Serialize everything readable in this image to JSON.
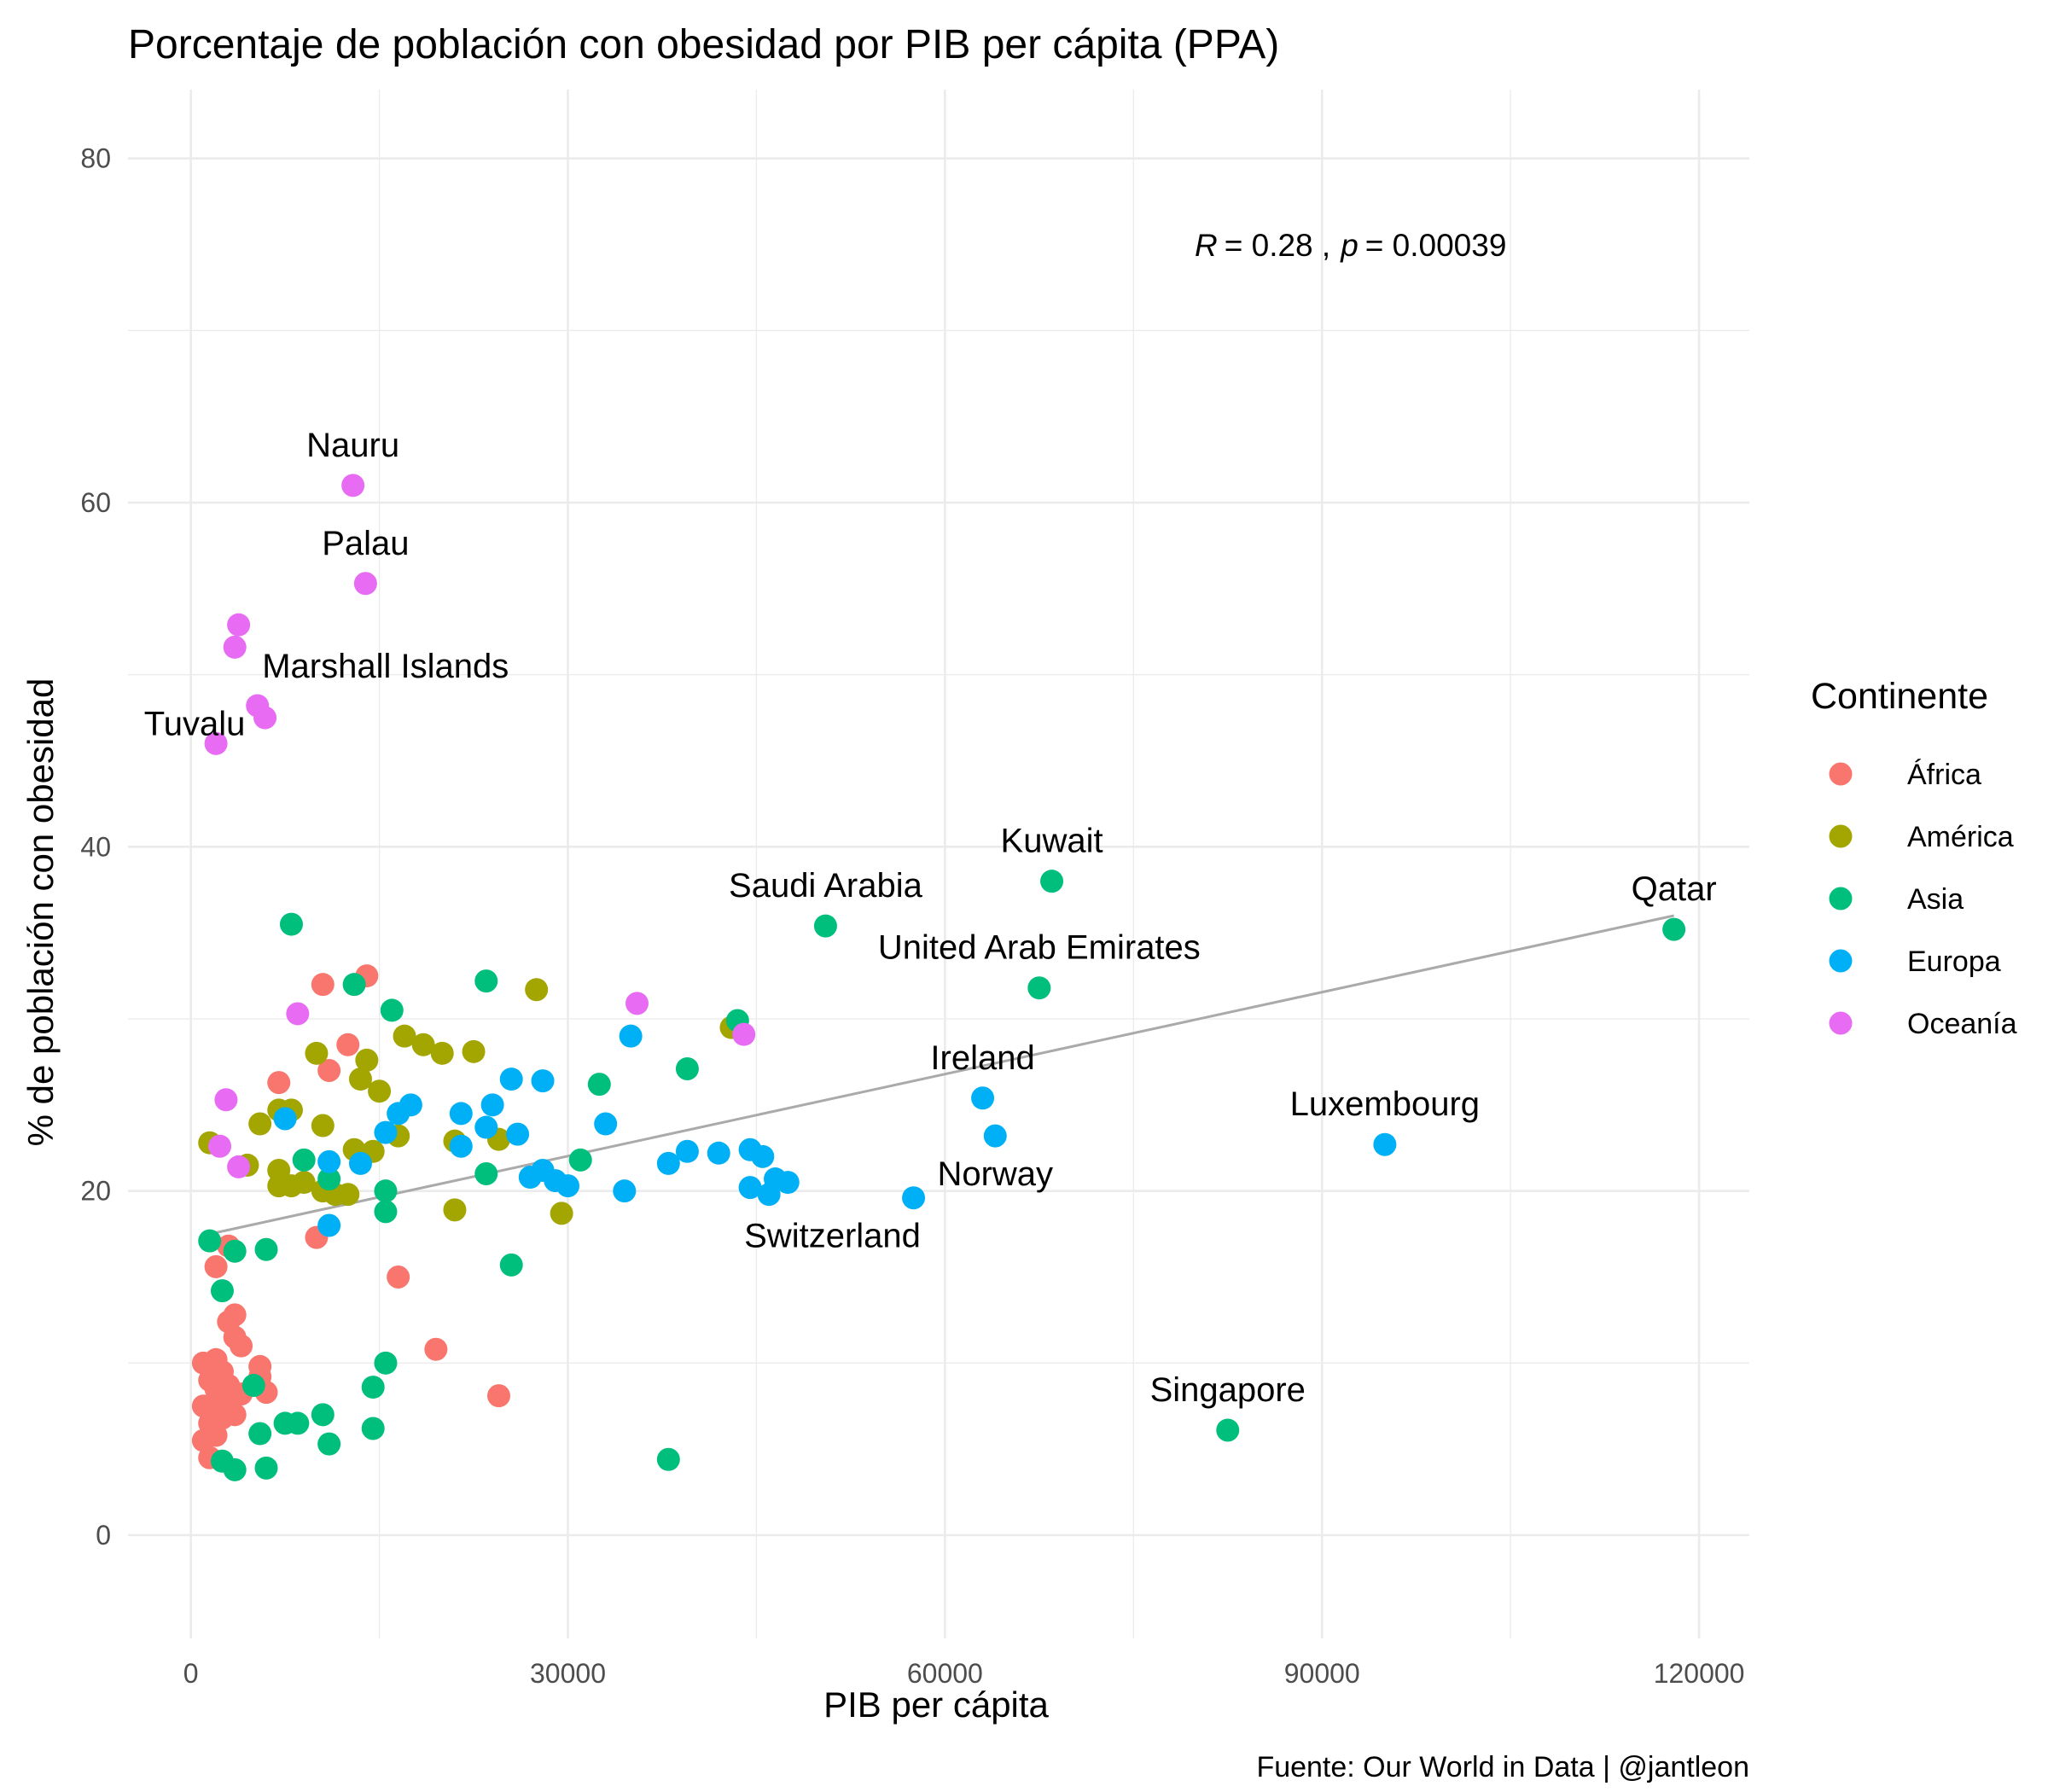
{
  "chart_data": {
    "type": "scatter",
    "title": "Porcentaje de población con obesidad por PIB per cápita (PPA)",
    "xlabel": "PIB per cápita",
    "ylabel": "% de población con obesidad",
    "caption": "Fuente: Our World in Data | @jantleon",
    "xlim": [
      -5000,
      124000
    ],
    "ylim": [
      -6,
      84
    ],
    "x_ticks": [
      0,
      30000,
      60000,
      90000,
      120000
    ],
    "y_ticks": [
      0,
      20,
      40,
      60,
      80
    ],
    "grid": true,
    "legend": {
      "title": "Continente",
      "position": "right"
    },
    "stat": {
      "r_label": "R",
      "r_value": "= 0.28 ,",
      "p_label": "p",
      "p_value": "= 0.00039"
    },
    "trend_line": {
      "x": [
        1500,
        118000
      ],
      "y": [
        17.5,
        36
      ],
      "color": "#aaaaaa"
    },
    "series": [
      {
        "name": "África",
        "color": "#F8766D",
        "points": [
          [
            10500,
            32
          ],
          [
            14000,
            32.5
          ],
          [
            12500,
            28.5
          ],
          [
            7000,
            26.3
          ],
          [
            11000,
            27
          ],
          [
            10000,
            17.3
          ],
          [
            3000,
            16.8
          ],
          [
            2000,
            15.6
          ],
          [
            16500,
            15
          ],
          [
            3500,
            12.8
          ],
          [
            3000,
            12.4
          ],
          [
            3500,
            11.5
          ],
          [
            4000,
            11
          ],
          [
            19500,
            10.8
          ],
          [
            1000,
            10
          ],
          [
            2000,
            10.2
          ],
          [
            2500,
            9.5
          ],
          [
            5500,
            9.8
          ],
          [
            5500,
            9.2
          ],
          [
            1500,
            9
          ],
          [
            2000,
            8.5
          ],
          [
            3000,
            8.7
          ],
          [
            4000,
            8.2
          ],
          [
            6000,
            8.3
          ],
          [
            24500,
            8.1
          ],
          [
            1000,
            7.5
          ],
          [
            2000,
            7.8
          ],
          [
            3000,
            7.6
          ],
          [
            1500,
            6.5
          ],
          [
            2500,
            6.8
          ],
          [
            3500,
            7
          ],
          [
            1000,
            5.5
          ],
          [
            2000,
            5.8
          ],
          [
            1500,
            4.5
          ]
        ]
      },
      {
        "name": "América",
        "color": "#A3A500",
        "points": [
          [
            27500,
            31.7
          ],
          [
            43000,
            29.5
          ],
          [
            17000,
            29
          ],
          [
            18500,
            28.5
          ],
          [
            20000,
            28
          ],
          [
            22500,
            28.1
          ],
          [
            10000,
            28
          ],
          [
            14000,
            27.6
          ],
          [
            13500,
            26.5
          ],
          [
            15000,
            25.8
          ],
          [
            8000,
            24.7
          ],
          [
            7000,
            24.7
          ],
          [
            5500,
            23.9
          ],
          [
            10500,
            23.8
          ],
          [
            16500,
            23.2
          ],
          [
            21000,
            22.9
          ],
          [
            24500,
            23
          ],
          [
            1500,
            22.8
          ],
          [
            13000,
            22.4
          ],
          [
            14500,
            22.3
          ],
          [
            4500,
            21.5
          ],
          [
            7000,
            21.2
          ],
          [
            9000,
            20.5
          ],
          [
            7000,
            20.3
          ],
          [
            8000,
            20.3
          ],
          [
            10500,
            20
          ],
          [
            12500,
            19.8
          ],
          [
            11500,
            19.8
          ],
          [
            21000,
            18.9
          ],
          [
            29500,
            18.7
          ]
        ]
      },
      {
        "name": "Asia",
        "color": "#00BF7D",
        "points": [
          [
            68500,
            38
          ],
          [
            50500,
            35.4
          ],
          [
            118000,
            35.2
          ],
          [
            8000,
            35.5
          ],
          [
            67500,
            31.8
          ],
          [
            23500,
            32.2
          ],
          [
            13000,
            32
          ],
          [
            43500,
            29.9
          ],
          [
            16000,
            30.5
          ],
          [
            39500,
            27.1
          ],
          [
            32500,
            26.2
          ],
          [
            31000,
            21.8
          ],
          [
            9000,
            21.8
          ],
          [
            23500,
            21
          ],
          [
            11000,
            20.7
          ],
          [
            15500,
            20
          ],
          [
            15500,
            18.8
          ],
          [
            1500,
            17.1
          ],
          [
            3500,
            16.5
          ],
          [
            6000,
            16.6
          ],
          [
            25500,
            15.7
          ],
          [
            2500,
            14.2
          ],
          [
            15500,
            10
          ],
          [
            5000,
            8.7
          ],
          [
            14500,
            8.6
          ],
          [
            10500,
            7
          ],
          [
            7500,
            6.5
          ],
          [
            8500,
            6.5
          ],
          [
            5500,
            5.9
          ],
          [
            14500,
            6.2
          ],
          [
            11000,
            5.3
          ],
          [
            82500,
            6.1
          ],
          [
            2500,
            4.3
          ],
          [
            3500,
            3.8
          ],
          [
            6000,
            3.9
          ],
          [
            38000,
            4.4
          ]
        ]
      },
      {
        "name": "Europa",
        "color": "#00B0F6",
        "points": [
          [
            63000,
            25.4
          ],
          [
            64000,
            23.2
          ],
          [
            95000,
            22.7
          ],
          [
            57500,
            19.6
          ],
          [
            35000,
            29
          ],
          [
            25500,
            26.5
          ],
          [
            28000,
            26.4
          ],
          [
            17500,
            25
          ],
          [
            24000,
            25
          ],
          [
            16500,
            24.5
          ],
          [
            21500,
            24.5
          ],
          [
            33000,
            23.9
          ],
          [
            23500,
            23.7
          ],
          [
            26000,
            23.3
          ],
          [
            15500,
            23.4
          ],
          [
            21500,
            22.6
          ],
          [
            39500,
            22.3
          ],
          [
            42000,
            22.2
          ],
          [
            44500,
            22.4
          ],
          [
            45500,
            22
          ],
          [
            38000,
            21.6
          ],
          [
            28000,
            21.2
          ],
          [
            27000,
            20.8
          ],
          [
            29000,
            20.6
          ],
          [
            30000,
            20.3
          ],
          [
            34500,
            20
          ],
          [
            44500,
            20.2
          ],
          [
            46000,
            19.8
          ],
          [
            46500,
            20.7
          ],
          [
            47500,
            20.5
          ],
          [
            11000,
            21.7
          ],
          [
            13500,
            21.6
          ],
          [
            11000,
            18
          ],
          [
            7500,
            24.2
          ]
        ]
      },
      {
        "name": "Oceanía",
        "color": "#E76BF3",
        "points": [
          [
            12900,
            61
          ],
          [
            13900,
            55.3
          ],
          [
            3800,
            52.9
          ],
          [
            3500,
            51.6
          ],
          [
            5300,
            48.2
          ],
          [
            5900,
            47.5
          ],
          [
            2000,
            46
          ],
          [
            35500,
            30.9
          ],
          [
            44000,
            29.1
          ],
          [
            8500,
            30.3
          ],
          [
            2800,
            25.3
          ],
          [
            2300,
            22.6
          ],
          [
            3800,
            21.4
          ]
        ]
      }
    ],
    "labels": [
      {
        "text": "Nauru",
        "x": 12900,
        "y": 61,
        "offset": "above"
      },
      {
        "text": "Palau",
        "x": 13900,
        "y": 55.3,
        "offset": "above"
      },
      {
        "text": "Marshall Islands",
        "x": 5300,
        "y": 48.2,
        "offset": "above-right"
      },
      {
        "text": "Tuvalu",
        "x": 2000,
        "y": 46,
        "offset": "above-left"
      },
      {
        "text": "Kuwait",
        "x": 68500,
        "y": 38,
        "offset": "above"
      },
      {
        "text": "Saudi Arabia",
        "x": 50500,
        "y": 35.4,
        "offset": "above"
      },
      {
        "text": "Qatar",
        "x": 118000,
        "y": 35.2,
        "offset": "above"
      },
      {
        "text": "United Arab Emirates",
        "x": 67500,
        "y": 31.8,
        "offset": "above"
      },
      {
        "text": "Ireland",
        "x": 63000,
        "y": 25.4,
        "offset": "above"
      },
      {
        "text": "Luxembourg",
        "x": 95000,
        "y": 22.7,
        "offset": "above"
      },
      {
        "text": "Norway",
        "x": 64000,
        "y": 23.2,
        "offset": "below"
      },
      {
        "text": "Switzerland",
        "x": 57500,
        "y": 19.6,
        "offset": "below-left"
      },
      {
        "text": "Singapore",
        "x": 82500,
        "y": 6.1,
        "offset": "above"
      }
    ]
  }
}
